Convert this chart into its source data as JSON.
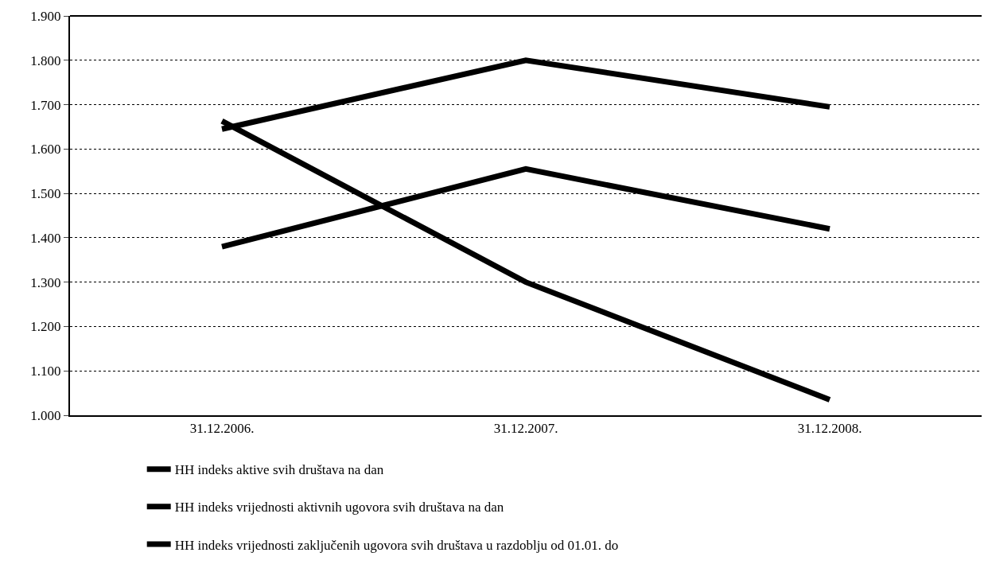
{
  "chart_data": {
    "type": "line",
    "categories": [
      "31.12.2006.",
      "31.12.2007.",
      "31.12.2008."
    ],
    "series": [
      {
        "name": "HH indeks aktive svih društava na dan",
        "color": "#000000",
        "values": [
          1.645,
          1.8,
          1.695
        ]
      },
      {
        "name": "HH indeks vrijednosti aktivnih ugovora svih društava na dan",
        "color": "#000000",
        "values": [
          1.38,
          1.555,
          1.42
        ]
      },
      {
        "name": "HH indeks vrijednosti zaključenih ugovora svih društava u razdoblju od 01.01. do",
        "color": "#000000",
        "values": [
          1.663,
          1.3,
          1.035
        ]
      }
    ],
    "ylim": [
      1.0,
      1.9
    ],
    "yticks": [
      {
        "value": 1.0,
        "label": "1.000"
      },
      {
        "value": 1.1,
        "label": "1.100"
      },
      {
        "value": 1.2,
        "label": "1.200"
      },
      {
        "value": 1.3,
        "label": "1.300"
      },
      {
        "value": 1.4,
        "label": "1.400"
      },
      {
        "value": 1.5,
        "label": "1.500"
      },
      {
        "value": 1.6,
        "label": "1.600"
      },
      {
        "value": 1.7,
        "label": "1.700"
      },
      {
        "value": 1.8,
        "label": "1.800"
      },
      {
        "value": 1.9,
        "label": "1.900"
      }
    ],
    "grid": "y",
    "legend": "bottom",
    "marker": "none",
    "line_style": "solid"
  }
}
